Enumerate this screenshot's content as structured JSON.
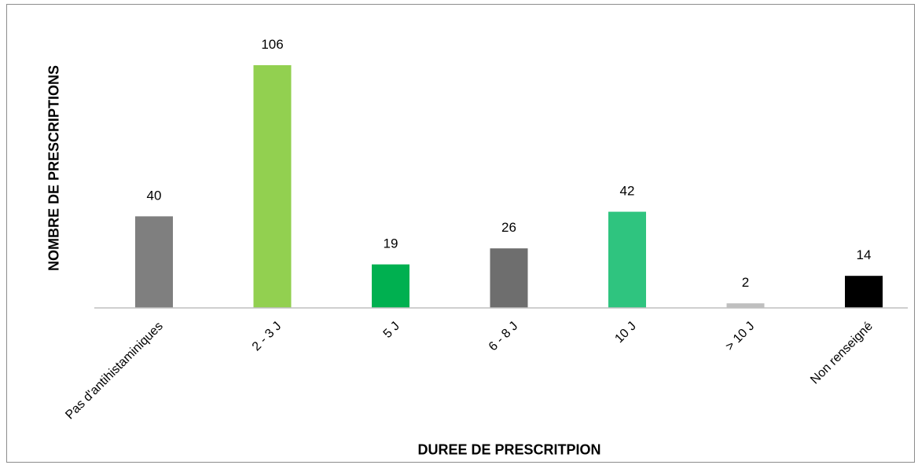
{
  "chart_data": {
    "type": "bar",
    "title": "",
    "xlabel": "DUREE DE PRESCRITPION",
    "ylabel": "NOMBRE DE PRESCRIPTIONS",
    "categories": [
      "Pas d'antihistaminiques",
      "2 - 3 J",
      "5 J",
      "6 - 8 J",
      "10 J",
      "> 10 J",
      "Non renseigné"
    ],
    "values": [
      40,
      106,
      19,
      26,
      42,
      2,
      14
    ],
    "colors": [
      "#7f7f7f",
      "#92d050",
      "#00b050",
      "#6e6e6e",
      "#2fc47f",
      "#bfbfbf",
      "#000000"
    ],
    "ylim": [
      0,
      106
    ],
    "grid": false,
    "legend": "none"
  }
}
